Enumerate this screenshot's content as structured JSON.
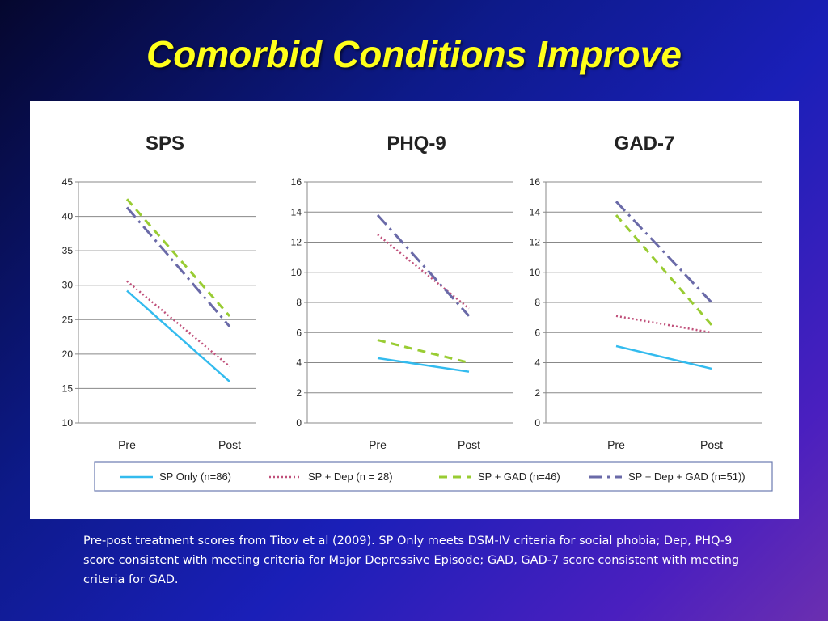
{
  "slide": {
    "title": "Comorbid Conditions Improve",
    "caption": "Pre-post treatment scores from Titov et al (2009).  SP Only meets DSM-IV criteria for social phobia; Dep, PHQ-9 score consistent with meeting criteria for Major Depressive Episode; GAD, GAD-7 score consistent with meeting criteria for GAD."
  },
  "colors": {
    "sp_only": "#33bbee",
    "sp_dep": "#c0507a",
    "sp_gad": "#99cc33",
    "sp_dep_gad": "#6a6aa8"
  },
  "chart_data": [
    {
      "type": "line",
      "title": "SPS",
      "categories": [
        "Pre",
        "Post"
      ],
      "ylim": [
        10,
        45
      ],
      "yticks": [
        "10",
        "15",
        "20",
        "25",
        "30",
        "35",
        "40",
        "45"
      ],
      "grid": true,
      "series": [
        {
          "name": "SP Only (n=86)",
          "values": [
            29.2,
            16.0
          ]
        },
        {
          "name": "SP + Dep (n = 28)",
          "values": [
            30.6,
            18.2
          ]
        },
        {
          "name": "SP + GAD (n=46)",
          "values": [
            42.5,
            25.5
          ]
        },
        {
          "name": "SP + Dep + GAD (n=51))",
          "values": [
            41.3,
            24.0
          ]
        }
      ]
    },
    {
      "type": "line",
      "title": "PHQ-9",
      "categories": [
        "Pre",
        "Post"
      ],
      "ylim": [
        0,
        16
      ],
      "yticks": [
        "0",
        "2",
        "4",
        "6",
        "8",
        "10",
        "12",
        "14",
        "16"
      ],
      "grid": true,
      "series": [
        {
          "name": "SP Only (n=86)",
          "values": [
            4.3,
            3.4
          ]
        },
        {
          "name": "SP + Dep (n = 28)",
          "values": [
            12.5,
            7.6
          ]
        },
        {
          "name": "SP + GAD (n=46)",
          "values": [
            5.5,
            4.0
          ]
        },
        {
          "name": "SP + Dep + GAD (n=51))",
          "values": [
            13.8,
            7.1
          ]
        }
      ]
    },
    {
      "type": "line",
      "title": "GAD-7",
      "categories": [
        "Pre",
        "Post"
      ],
      "ylim": [
        0,
        16
      ],
      "yticks": [
        "0",
        "2",
        "4",
        "6",
        "8",
        "10",
        "12",
        "14",
        "16"
      ],
      "grid": true,
      "series": [
        {
          "name": "SP Only (n=86)",
          "values": [
            5.1,
            3.6
          ]
        },
        {
          "name": "SP + Dep (n = 28)",
          "values": [
            7.1,
            6.0
          ]
        },
        {
          "name": "SP + GAD (n=46)",
          "values": [
            13.8,
            6.5
          ]
        },
        {
          "name": "SP + Dep + GAD (n=51))",
          "values": [
            14.7,
            8.0
          ]
        }
      ]
    }
  ],
  "legend": {
    "placement": "bottom",
    "items": [
      {
        "label": "SP Only (n=86)",
        "color_key": "sp_only",
        "style": "solid"
      },
      {
        "label": "SP + Dep (n = 28)",
        "color_key": "sp_dep",
        "style": "dotted"
      },
      {
        "label": "SP + GAD (n=46)",
        "color_key": "sp_gad",
        "style": "dashed"
      },
      {
        "label": "SP + Dep + GAD (n=51))",
        "color_key": "sp_dep_gad",
        "style": "dashdot"
      }
    ]
  }
}
